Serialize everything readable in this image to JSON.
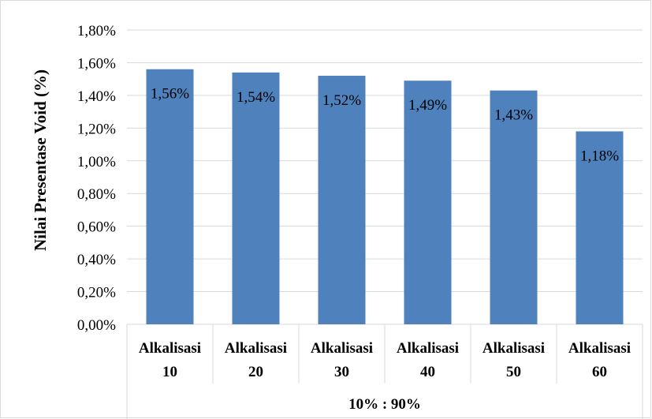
{
  "chart_data": {
    "type": "bar",
    "categories": [
      [
        "Alkalisasi",
        "10"
      ],
      [
        "Alkalisasi",
        "20"
      ],
      [
        "Alkalisasi",
        "30"
      ],
      [
        "Alkalisasi",
        "40"
      ],
      [
        "Alkalisasi",
        "50"
      ],
      [
        "Alkalisasi",
        "60"
      ]
    ],
    "group_label": "10% : 90%",
    "values": [
      1.56,
      1.54,
      1.52,
      1.49,
      1.43,
      1.18
    ],
    "data_labels": [
      "1,56%",
      "1,54%",
      "1,52%",
      "1,49%",
      "1,43%",
      "1,18%"
    ],
    "ylabel": "Nilai Presentase Void (%)",
    "ylim": [
      0,
      1.8
    ],
    "yticks": [
      0,
      0.2,
      0.4,
      0.6,
      0.8,
      1.0,
      1.2,
      1.4,
      1.6,
      1.8
    ],
    "ytick_labels": [
      "0,00%",
      "0,20%",
      "0,40%",
      "0,60%",
      "0,80%",
      "1,00%",
      "1,20%",
      "1,40%",
      "1,60%",
      "1,80%"
    ],
    "grid": true,
    "legend": "none",
    "bar_color": "#4f81bd",
    "grid_color": "#d9d9d9"
  }
}
